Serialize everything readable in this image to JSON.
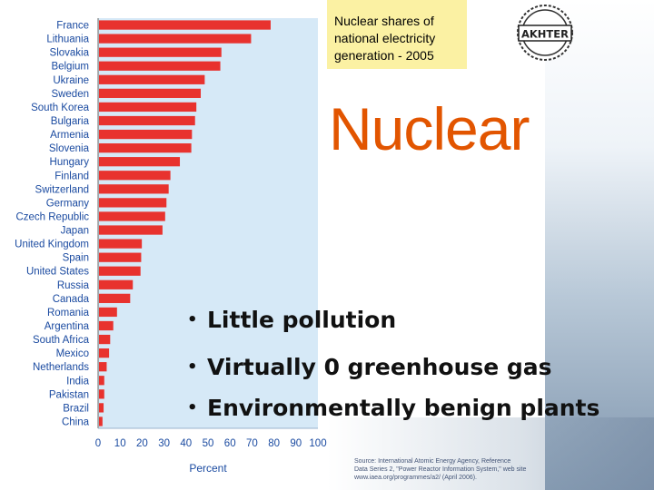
{
  "caption": {
    "line1": "Nuclear shares of",
    "line2": "national electricity",
    "line3": "generation - 2005"
  },
  "logo": {
    "text": "AKHTER",
    "icon": "gear-seal-logo"
  },
  "title": "Nuclear",
  "bullets": [
    "Little pollution",
    "Virtually 0 greenhouse gas",
    "Environmentally benign plants"
  ],
  "source": {
    "line1": "Source: International Atomic Energy Agency, Reference",
    "line2": "Data Series 2, \"Power Reactor Information System,\" web site",
    "line3": "www.iaea.org/programmes/a2/ (April 2006)."
  },
  "colors": {
    "bar": "#e8322e",
    "plot_bg": "#d6e9f7",
    "title": "#e25500",
    "caption_bg": "#fbf1a3",
    "axis_text": "#1a4aa0"
  },
  "chart_data": {
    "type": "bar",
    "orientation": "horizontal",
    "categories": [
      "France",
      "Lithuania",
      "Slovakia",
      "Belgium",
      "Ukraine",
      "Sweden",
      "South Korea",
      "Bulgaria",
      "Armenia",
      "Slovenia",
      "Hungary",
      "Finland",
      "Switzerland",
      "Germany",
      "Czech Republic",
      "Japan",
      "United Kingdom",
      "Spain",
      "United States",
      "Russia",
      "Canada",
      "Romania",
      "Argentina",
      "South Africa",
      "Mexico",
      "Netherlands",
      "India",
      "Pakistan",
      "Brazil",
      "China"
    ],
    "values": [
      78.5,
      69.6,
      56.1,
      55.6,
      48.5,
      46.7,
      44.7,
      44.1,
      42.7,
      42.4,
      37.2,
      32.9,
      32.1,
      31.1,
      30.5,
      29.3,
      19.9,
      19.6,
      19.3,
      15.8,
      14.6,
      8.6,
      6.9,
      5.5,
      5.0,
      3.9,
      2.8,
      2.8,
      2.5,
      2.0
    ],
    "xlabel": "Percent",
    "xlim": [
      0,
      100
    ],
    "xticks": [
      0,
      10,
      20,
      30,
      40,
      50,
      60,
      70,
      80,
      90,
      100
    ],
    "grid": false
  }
}
